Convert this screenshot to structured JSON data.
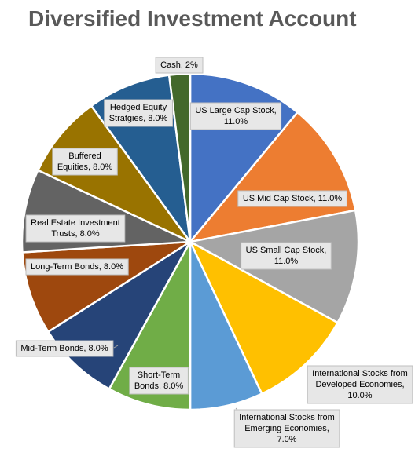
{
  "chart_data": {
    "type": "pie",
    "title": "Diversified Investment Account",
    "slices": [
      {
        "name": "US Large Cap Stock",
        "value": 11.0,
        "label_lines": [
          "US Large Cap Stock,",
          "11.0%"
        ],
        "color": "#4472c4"
      },
      {
        "name": "US Mid Cap Stock",
        "value": 11.0,
        "label_lines": [
          "US Mid Cap Stock, 11.0%"
        ],
        "color": "#ed7d31"
      },
      {
        "name": "US Small Cap Stock",
        "value": 11.0,
        "label_lines": [
          "US Small Cap Stock,",
          "11.0%"
        ],
        "color": "#a5a5a5"
      },
      {
        "name": "International Stocks from Developed Economies",
        "value": 10.0,
        "label_lines": [
          "International Stocks from",
          "Developed Economies,",
          "10.0%"
        ],
        "color": "#ffc000"
      },
      {
        "name": "International Stocks from Emerging Economies",
        "value": 7.0,
        "label_lines": [
          "International Stocks from",
          "Emerging Economies,",
          "7.0%"
        ],
        "color": "#5b9bd5"
      },
      {
        "name": "Short-Term Bonds",
        "value": 8.0,
        "label_lines": [
          "Short-Term",
          "Bonds, 8.0%"
        ],
        "color": "#70ad47"
      },
      {
        "name": "Mid-Term Bonds",
        "value": 8.0,
        "label_lines": [
          "Mid-Term Bonds, 8.0%"
        ],
        "color": "#264478"
      },
      {
        "name": "Long-Term Bonds",
        "value": 8.0,
        "label_lines": [
          "Long-Term Bonds, 8.0%"
        ],
        "color": "#9e480e"
      },
      {
        "name": "Real Estate Investment Trusts",
        "value": 8.0,
        "label_lines": [
          "Real Estate Investment",
          "Trusts, 8.0%"
        ],
        "color": "#636363"
      },
      {
        "name": "Buffered Equities",
        "value": 8.0,
        "label_lines": [
          "Buffered",
          "Equities, 8.0%"
        ],
        "color": "#997300"
      },
      {
        "name": "Hedged Equity Stratgies",
        "value": 8.0,
        "label_lines": [
          "Hedged Equity",
          "Stratgies, 8.0%"
        ],
        "color": "#255e91"
      },
      {
        "name": "Cash",
        "value": 2,
        "label_lines": [
          "Cash, 2%"
        ],
        "color": "#43682b"
      }
    ]
  }
}
